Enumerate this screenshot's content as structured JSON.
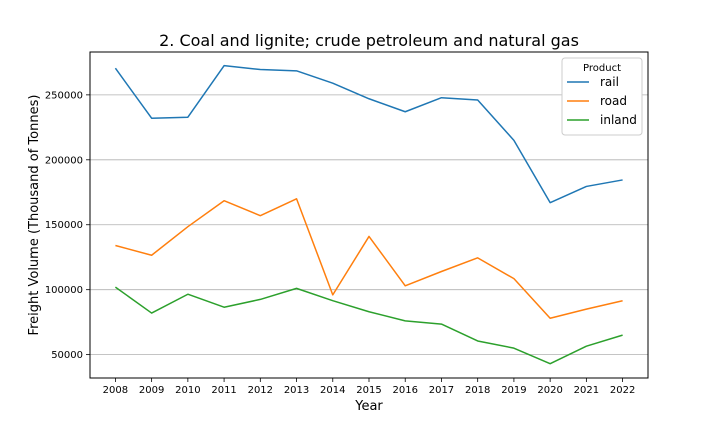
{
  "chart_data": {
    "type": "line",
    "title": "2. Coal and lignite; crude petroleum and natural gas",
    "xlabel": "Year",
    "ylabel": "Freight Volume (Thousand of Tonnes)",
    "x": [
      2008,
      2009,
      2010,
      2011,
      2012,
      2013,
      2014,
      2015,
      2016,
      2017,
      2018,
      2019,
      2020,
      2021,
      2022
    ],
    "x_tick_labels": [
      "2008",
      "2009",
      "2010",
      "2011",
      "2012",
      "2013",
      "2014",
      "2015",
      "2016",
      "2017",
      "2018",
      "2019",
      "2020",
      "2021",
      "2022"
    ],
    "y_ticks": [
      50000,
      100000,
      150000,
      200000,
      250000
    ],
    "y_tick_labels": [
      "50000",
      "100000",
      "150000",
      "200000",
      "250000"
    ],
    "ylim": [
      32000,
      283000
    ],
    "grid": "horizontal",
    "legend": {
      "title": "Product",
      "placement": "top-right"
    },
    "series": [
      {
        "name": "rail",
        "color": "#1f77b4",
        "values": [
          270500,
          232000,
          232800,
          272500,
          269500,
          268500,
          259000,
          247000,
          237000,
          247800,
          246000,
          215000,
          167000,
          179500,
          184500
        ]
      },
      {
        "name": "road",
        "color": "#ff7f0e",
        "values": [
          134000,
          126500,
          148500,
          168500,
          157000,
          170000,
          96000,
          141000,
          103000,
          114000,
          124500,
          108500,
          78000,
          85000,
          91500
        ]
      },
      {
        "name": "inland",
        "color": "#2ca02c",
        "values": [
          102000,
          82000,
          96500,
          86500,
          92500,
          101000,
          91500,
          83000,
          76000,
          73500,
          60500,
          55000,
          43000,
          56500,
          65000
        ]
      }
    ]
  }
}
